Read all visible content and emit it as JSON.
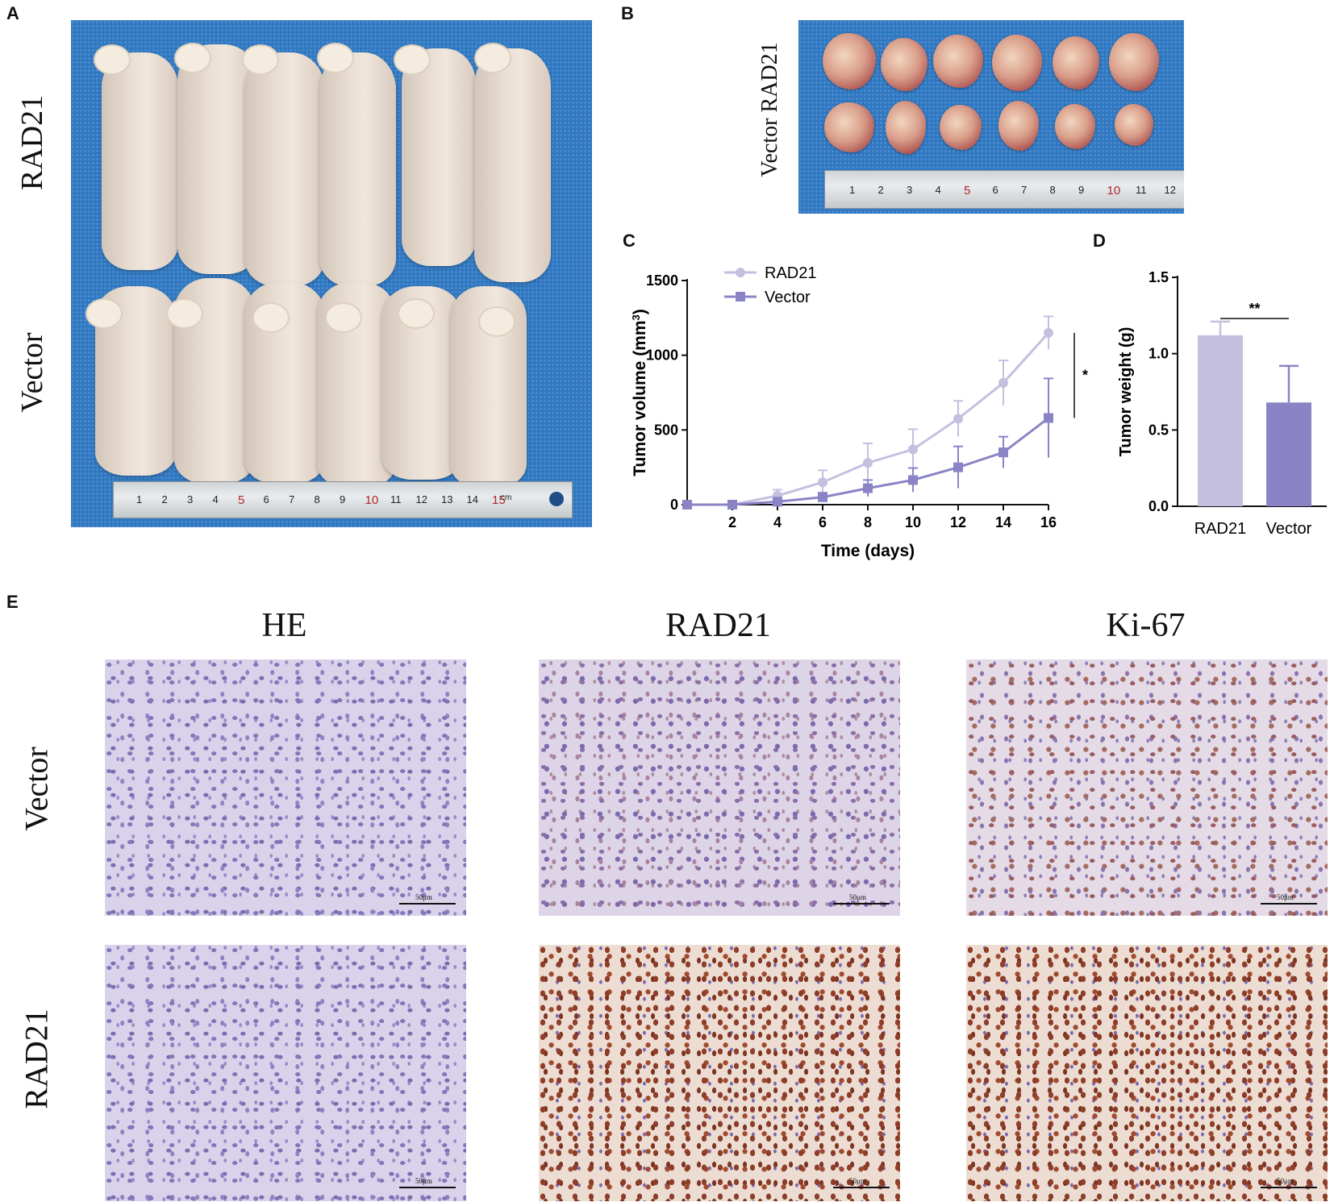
{
  "panels": {
    "a": {
      "letter": "A",
      "row_top": "RAD21",
      "row_bottom": "Vector"
    },
    "b": {
      "letter": "B",
      "side_label": "Vector  RAD21"
    },
    "c": {
      "letter": "C"
    },
    "d": {
      "letter": "D"
    },
    "e": {
      "letter": "E",
      "columns": [
        "HE",
        "RAD21",
        "Ki-67"
      ],
      "rows": [
        "Vector",
        "RAD21"
      ],
      "scale_label": "50μm"
    }
  },
  "ruler_a": {
    "numbers": [
      "1",
      "2",
      "3",
      "4",
      "5",
      "6",
      "7",
      "8",
      "9",
      "10",
      "11",
      "12",
      "13",
      "14",
      "15"
    ],
    "unit": "cm"
  },
  "ruler_b": {
    "numbers": [
      "1",
      "2",
      "3",
      "4",
      "5",
      "6",
      "7",
      "8",
      "9",
      "10",
      "11",
      "12"
    ]
  },
  "colors": {
    "rad21": "#c5bfe0",
    "vector": "#8a84c6",
    "mat_blue": "#2f78c2"
  },
  "chart_data": [
    {
      "type": "line",
      "panel": "C",
      "xlabel": "Time (days)",
      "ylabel": "Tumor volume (mm",
      "ylabel_sup": "3",
      "ylabel_end": ")",
      "x": [
        0,
        2,
        4,
        6,
        8,
        10,
        12,
        14,
        16
      ],
      "xticks": [
        "2",
        "4",
        "6",
        "8",
        "10",
        "12",
        "14",
        "16"
      ],
      "yticks": [
        "0",
        "500",
        "1000",
        "1500"
      ],
      "ylim": [
        0,
        1500
      ],
      "xlim": [
        0,
        16
      ],
      "series": [
        {
          "name": "RAD21",
          "marker": "circle",
          "values": [
            0,
            0,
            60,
            150,
            280,
            370,
            575,
            815,
            1150
          ],
          "errors": [
            0,
            0,
            40,
            80,
            130,
            135,
            120,
            150,
            110
          ]
        },
        {
          "name": "Vector",
          "marker": "square",
          "values": [
            0,
            0,
            20,
            50,
            110,
            165,
            250,
            350,
            580
          ],
          "errors": [
            0,
            0,
            15,
            30,
            55,
            80,
            140,
            105,
            265
          ]
        }
      ],
      "significance": "*",
      "legend": "top-left"
    },
    {
      "type": "bar",
      "panel": "D",
      "categories": [
        "RAD21",
        "Vector"
      ],
      "values": [
        1.12,
        0.68
      ],
      "errors": [
        0.09,
        0.24
      ],
      "ylabel": "Tumor weight (g)",
      "yticks": [
        "0.0",
        "0.5",
        "1.0",
        "1.5"
      ],
      "ylim": [
        0,
        1.5
      ],
      "significance": "**"
    }
  ]
}
